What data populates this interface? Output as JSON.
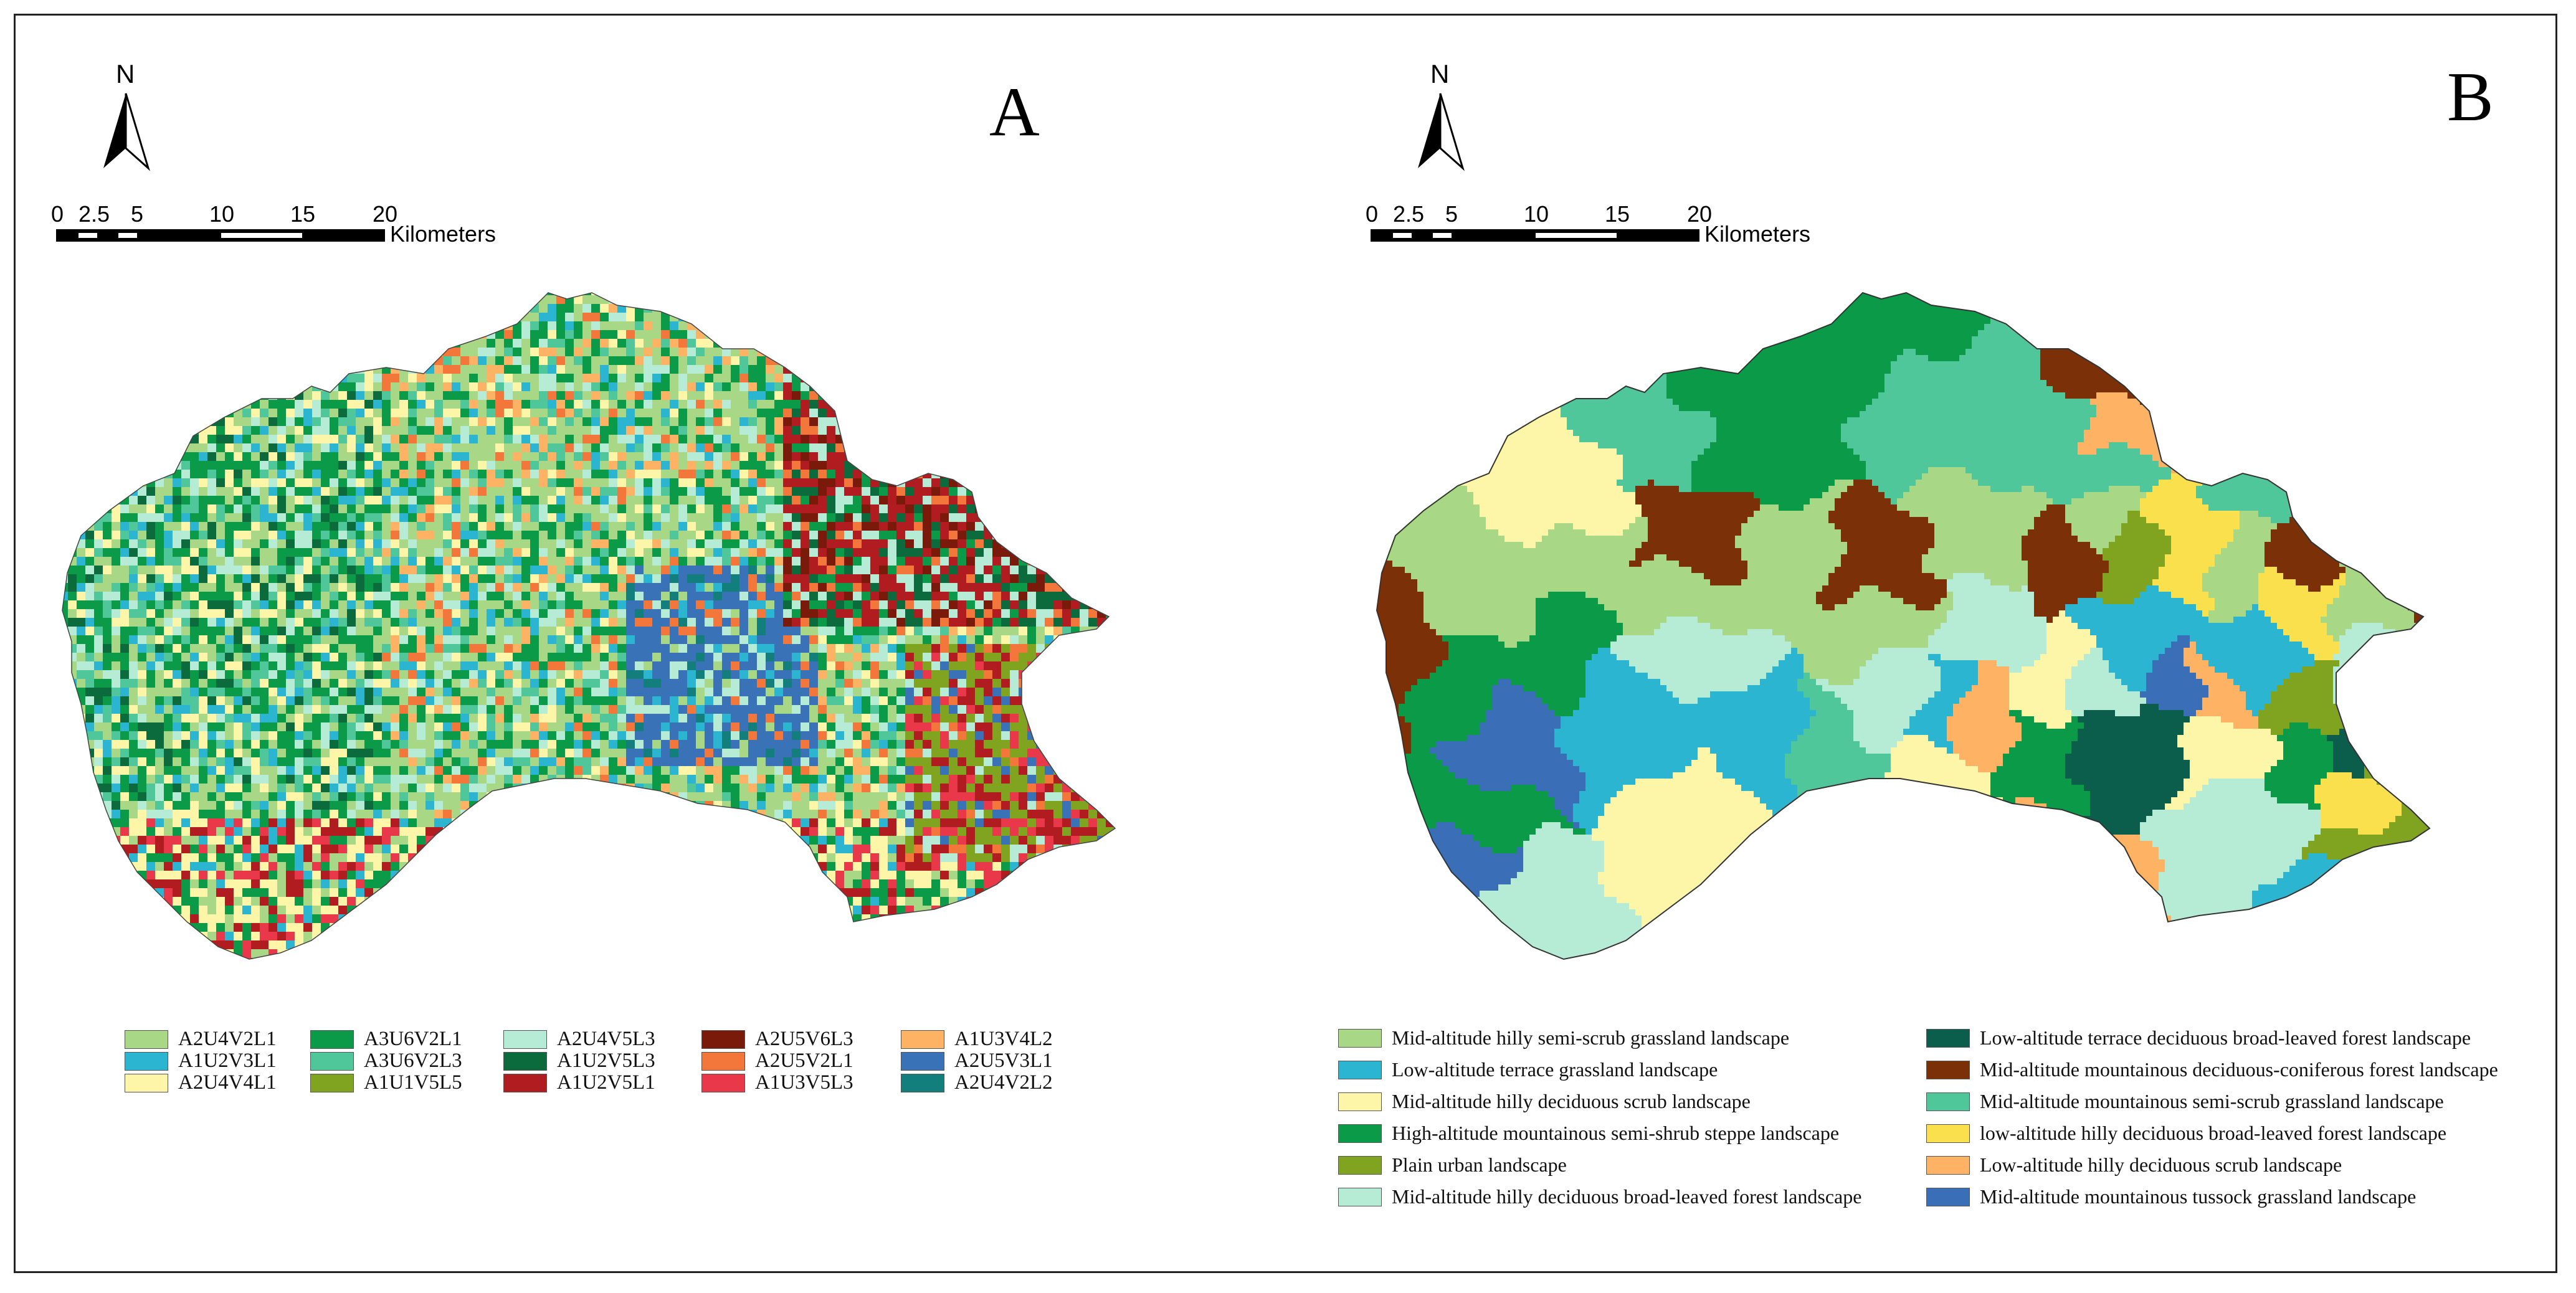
{
  "panels": [
    {
      "letter": "A",
      "north": "N",
      "scale": {
        "ticks": [
          "0",
          "2.5",
          "5",
          "10",
          "15",
          "20"
        ],
        "unit": "Kilometers"
      }
    },
    {
      "letter": "B",
      "north": "N",
      "scale": {
        "ticks": [
          "0",
          "2.5",
          "5",
          "10",
          "15",
          "20"
        ],
        "unit": "Kilometers"
      }
    }
  ],
  "legend_a": [
    {
      "code": "A2U4V2L1",
      "color": "#a8d886"
    },
    {
      "code": "A1U2V3L1",
      "color": "#2bb5d0"
    },
    {
      "code": "A2U4V4L1",
      "color": "#fdf6a8"
    },
    {
      "code": "A3U6V2L1",
      "color": "#0a9a48"
    },
    {
      "code": "A3U6V2L3",
      "color": "#4fc79a"
    },
    {
      "code": "A1U1V5L5",
      "color": "#80a41f"
    },
    {
      "code": "A2U4V5L3",
      "color": "#b6ecd6"
    },
    {
      "code": "A1U2V5L3",
      "color": "#0b6b3d"
    },
    {
      "code": "A1U2V5L1",
      "color": "#b01c20"
    },
    {
      "code": "A2U5V6L3",
      "color": "#7a1a0a"
    },
    {
      "code": "A2U5V2L1",
      "color": "#f3773a"
    },
    {
      "code": "A1U3V5L3",
      "color": "#e8384a"
    },
    {
      "code": "A1U3V4L2",
      "color": "#fdb363"
    },
    {
      "code": "A2U5V3L1",
      "color": "#3a72b8"
    },
    {
      "code": "A2U4V2L2",
      "color": "#127f7d"
    }
  ],
  "legend_b": [
    {
      "label": "Mid-altitude hilly semi-scrub grassland landscape",
      "color": "#a8d886"
    },
    {
      "label": "Low-altitude terrace grassland landscape",
      "color": "#2bb5d0"
    },
    {
      "label": "Mid-altitude hilly deciduous scrub landscape",
      "color": "#fdf6a8"
    },
    {
      "label": "High-altitude mountainous semi-shrub steppe landscape",
      "color": "#0a9a48"
    },
    {
      "label": "Plain urban landscape",
      "color": "#80a41f"
    },
    {
      "label": "Mid-altitude hilly deciduous broad-leaved forest landscape",
      "color": "#b6ecd6"
    },
    {
      "label": "Low-altitude terrace deciduous broad-leaved forest landscape",
      "color": "#0b5e4c"
    },
    {
      "label": "Mid-altitude mountainous deciduous-coniferous forest landscape",
      "color": "#7b3008"
    },
    {
      "label": "Mid-altitude mountainous semi-scrub grassland landscape",
      "color": "#4fc79a"
    },
    {
      "label": "low-altitude hilly deciduous broad-leaved forest landscape",
      "color": "#fbe04e"
    },
    {
      "label": "Low-altitude hilly deciduous scrub landscape",
      "color": "#fdb363"
    },
    {
      "label": "Mid-altitude mountainous tussock grassland landscape",
      "color": "#3a6fb7"
    }
  ]
}
